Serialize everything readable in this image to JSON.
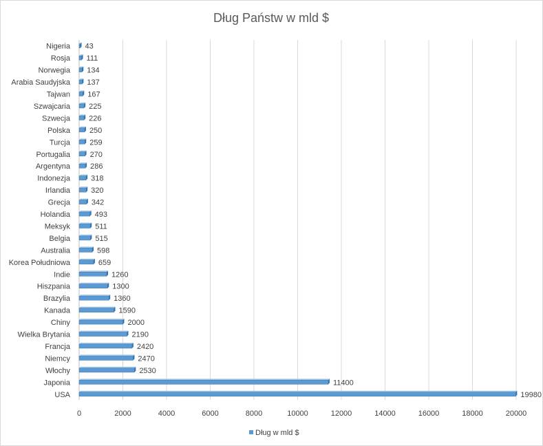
{
  "chart_data": {
    "type": "bar",
    "orientation": "horizontal",
    "title": "Dług Państw w mld $",
    "categories": [
      "USA",
      "Japonia",
      "Włochy",
      "Niemcy",
      "Francja",
      "Wielka Brytania",
      "Chiny",
      "Kanada",
      "Brazylia",
      "Hiszpania",
      "Indie",
      "Korea Południowa",
      "Australia",
      "Belgia",
      "Meksyk",
      "Holandia",
      "Grecja",
      "Irlandia",
      "Indonezja",
      "Argentyna",
      "Portugalia",
      "Turcja",
      "Polska",
      "Szwecja",
      "Szwajcaria",
      "Tajwan",
      "Arabia Saudyjska",
      "Norwegia",
      "Rosja",
      "Nigeria"
    ],
    "series": [
      {
        "name": "Dług w mld $",
        "color": "#5b9bd5",
        "values": [
          19980,
          11400,
          2530,
          2470,
          2420,
          2190,
          2000,
          1590,
          1360,
          1300,
          1260,
          659,
          598,
          515,
          511,
          493,
          342,
          320,
          318,
          286,
          270,
          259,
          250,
          226,
          225,
          167,
          137,
          134,
          111,
          43
        ]
      }
    ],
    "xlim": [
      0,
      20000
    ],
    "xticks": [
      0,
      2000,
      4000,
      6000,
      8000,
      10000,
      12000,
      14000,
      16000,
      18000,
      20000
    ],
    "grid": "vertical",
    "legend_position": "bottom",
    "data_labels": true
  }
}
